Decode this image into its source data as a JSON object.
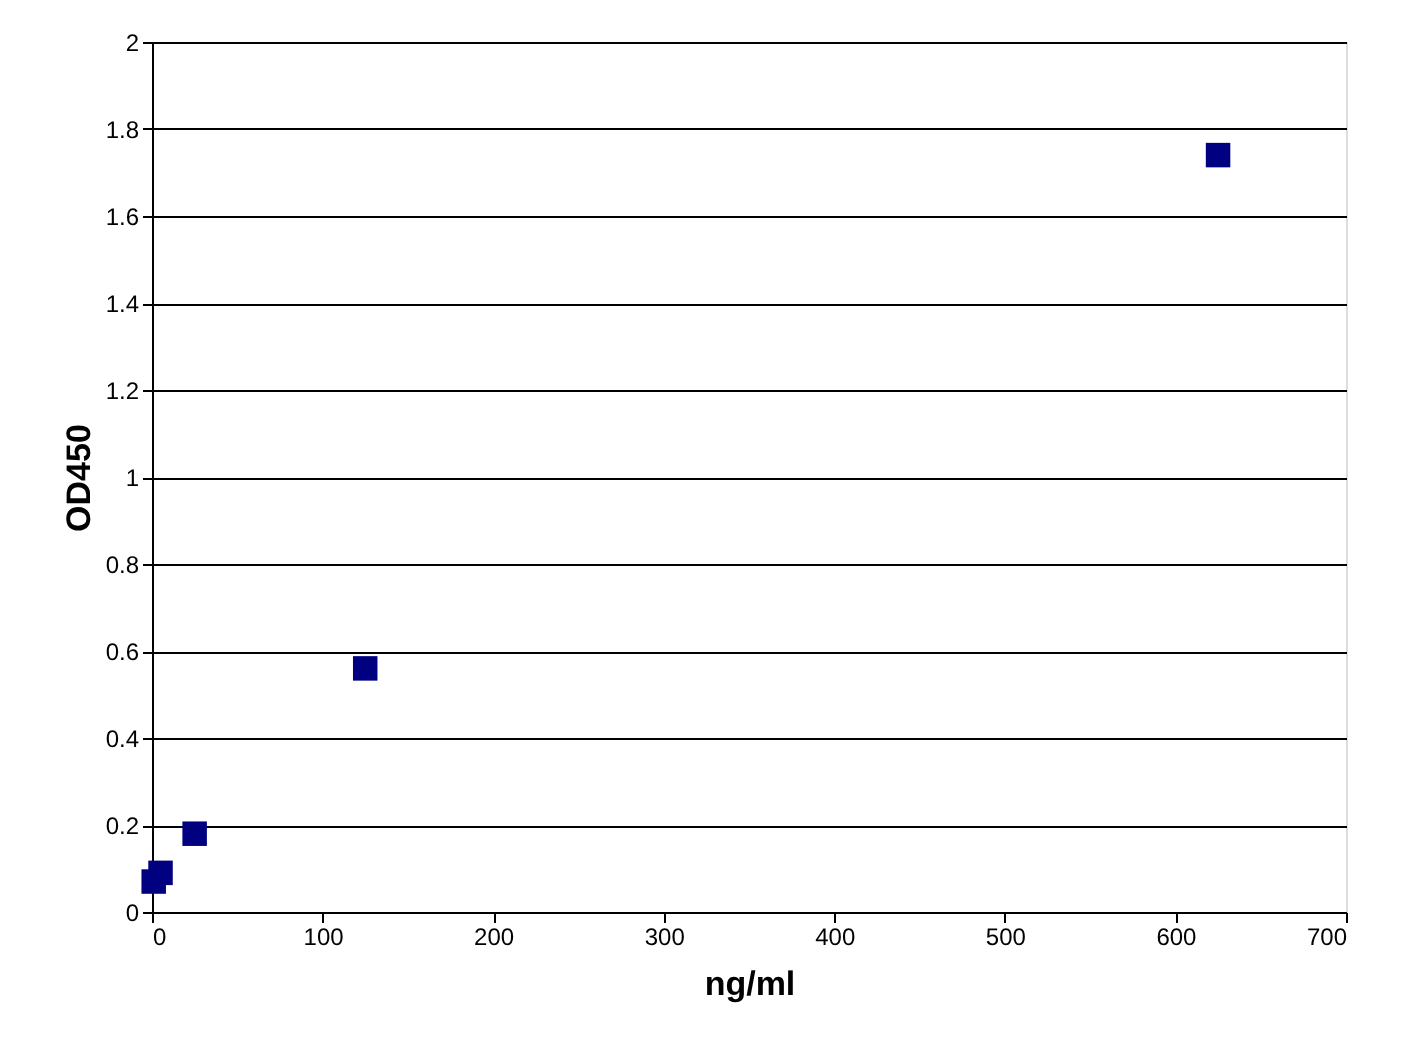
{
  "chart_data": {
    "type": "scatter",
    "xlabel": "ng/ml",
    "ylabel": "OD450",
    "x": [
      1,
      5,
      25,
      125,
      625
    ],
    "series": [
      {
        "color": "#000080",
        "values": [
          0.07,
          0.09,
          0.18,
          0.56,
          1.74
        ]
      }
    ],
    "marker": "square",
    "xlim": [
      0,
      700
    ],
    "xticks": [
      0,
      100,
      200,
      300,
      400,
      500,
      600,
      700
    ],
    "ylim": [
      0,
      2
    ],
    "yticks": [
      0,
      0.2,
      0.4,
      0.6,
      0.8,
      1,
      1.2,
      1.4,
      1.6,
      1.8,
      2
    ],
    "grid": "y"
  }
}
